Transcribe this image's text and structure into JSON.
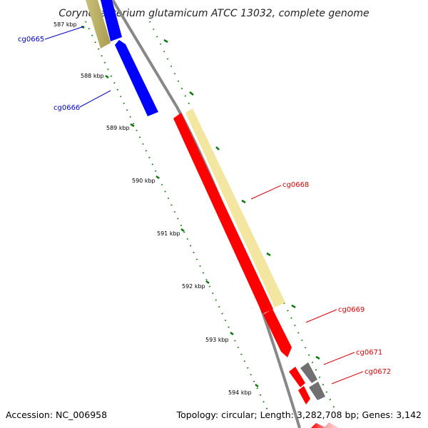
{
  "title": "Corynebacterium glutamicum ATCC 13032, complete genome",
  "footer": {
    "accession": "Accession: NC_006958",
    "summary": "Topology: circular; Length: 3,282,708 bp; Genes: 3,142"
  },
  "ruler": [
    {
      "label": "587 kbp"
    },
    {
      "label": "588 kbp"
    },
    {
      "label": "589 kbp"
    },
    {
      "label": "590 kbp"
    },
    {
      "label": "591 kbp"
    },
    {
      "label": "592 kbp"
    },
    {
      "label": "593 kbp"
    },
    {
      "label": "594 kbp"
    }
  ],
  "genes": [
    {
      "label": "cg0665",
      "color": "#0000cc"
    },
    {
      "label": "cg0666",
      "color": "#0000cc"
    },
    {
      "label": "cg0668",
      "color": "#dd0000"
    },
    {
      "label": "cg0669",
      "color": "#dd0000"
    },
    {
      "label": "cg0671",
      "color": "#dd0000"
    },
    {
      "label": "cg0672",
      "color": "#dd0000"
    }
  ],
  "colors": {
    "forward_cds": "#ff0000",
    "reverse_cds": "#0000ff",
    "annotation_band": "#f2e6a0",
    "gray_feature": "#707070",
    "backbone": "#888888",
    "tick": "#0a7a0a"
  }
}
